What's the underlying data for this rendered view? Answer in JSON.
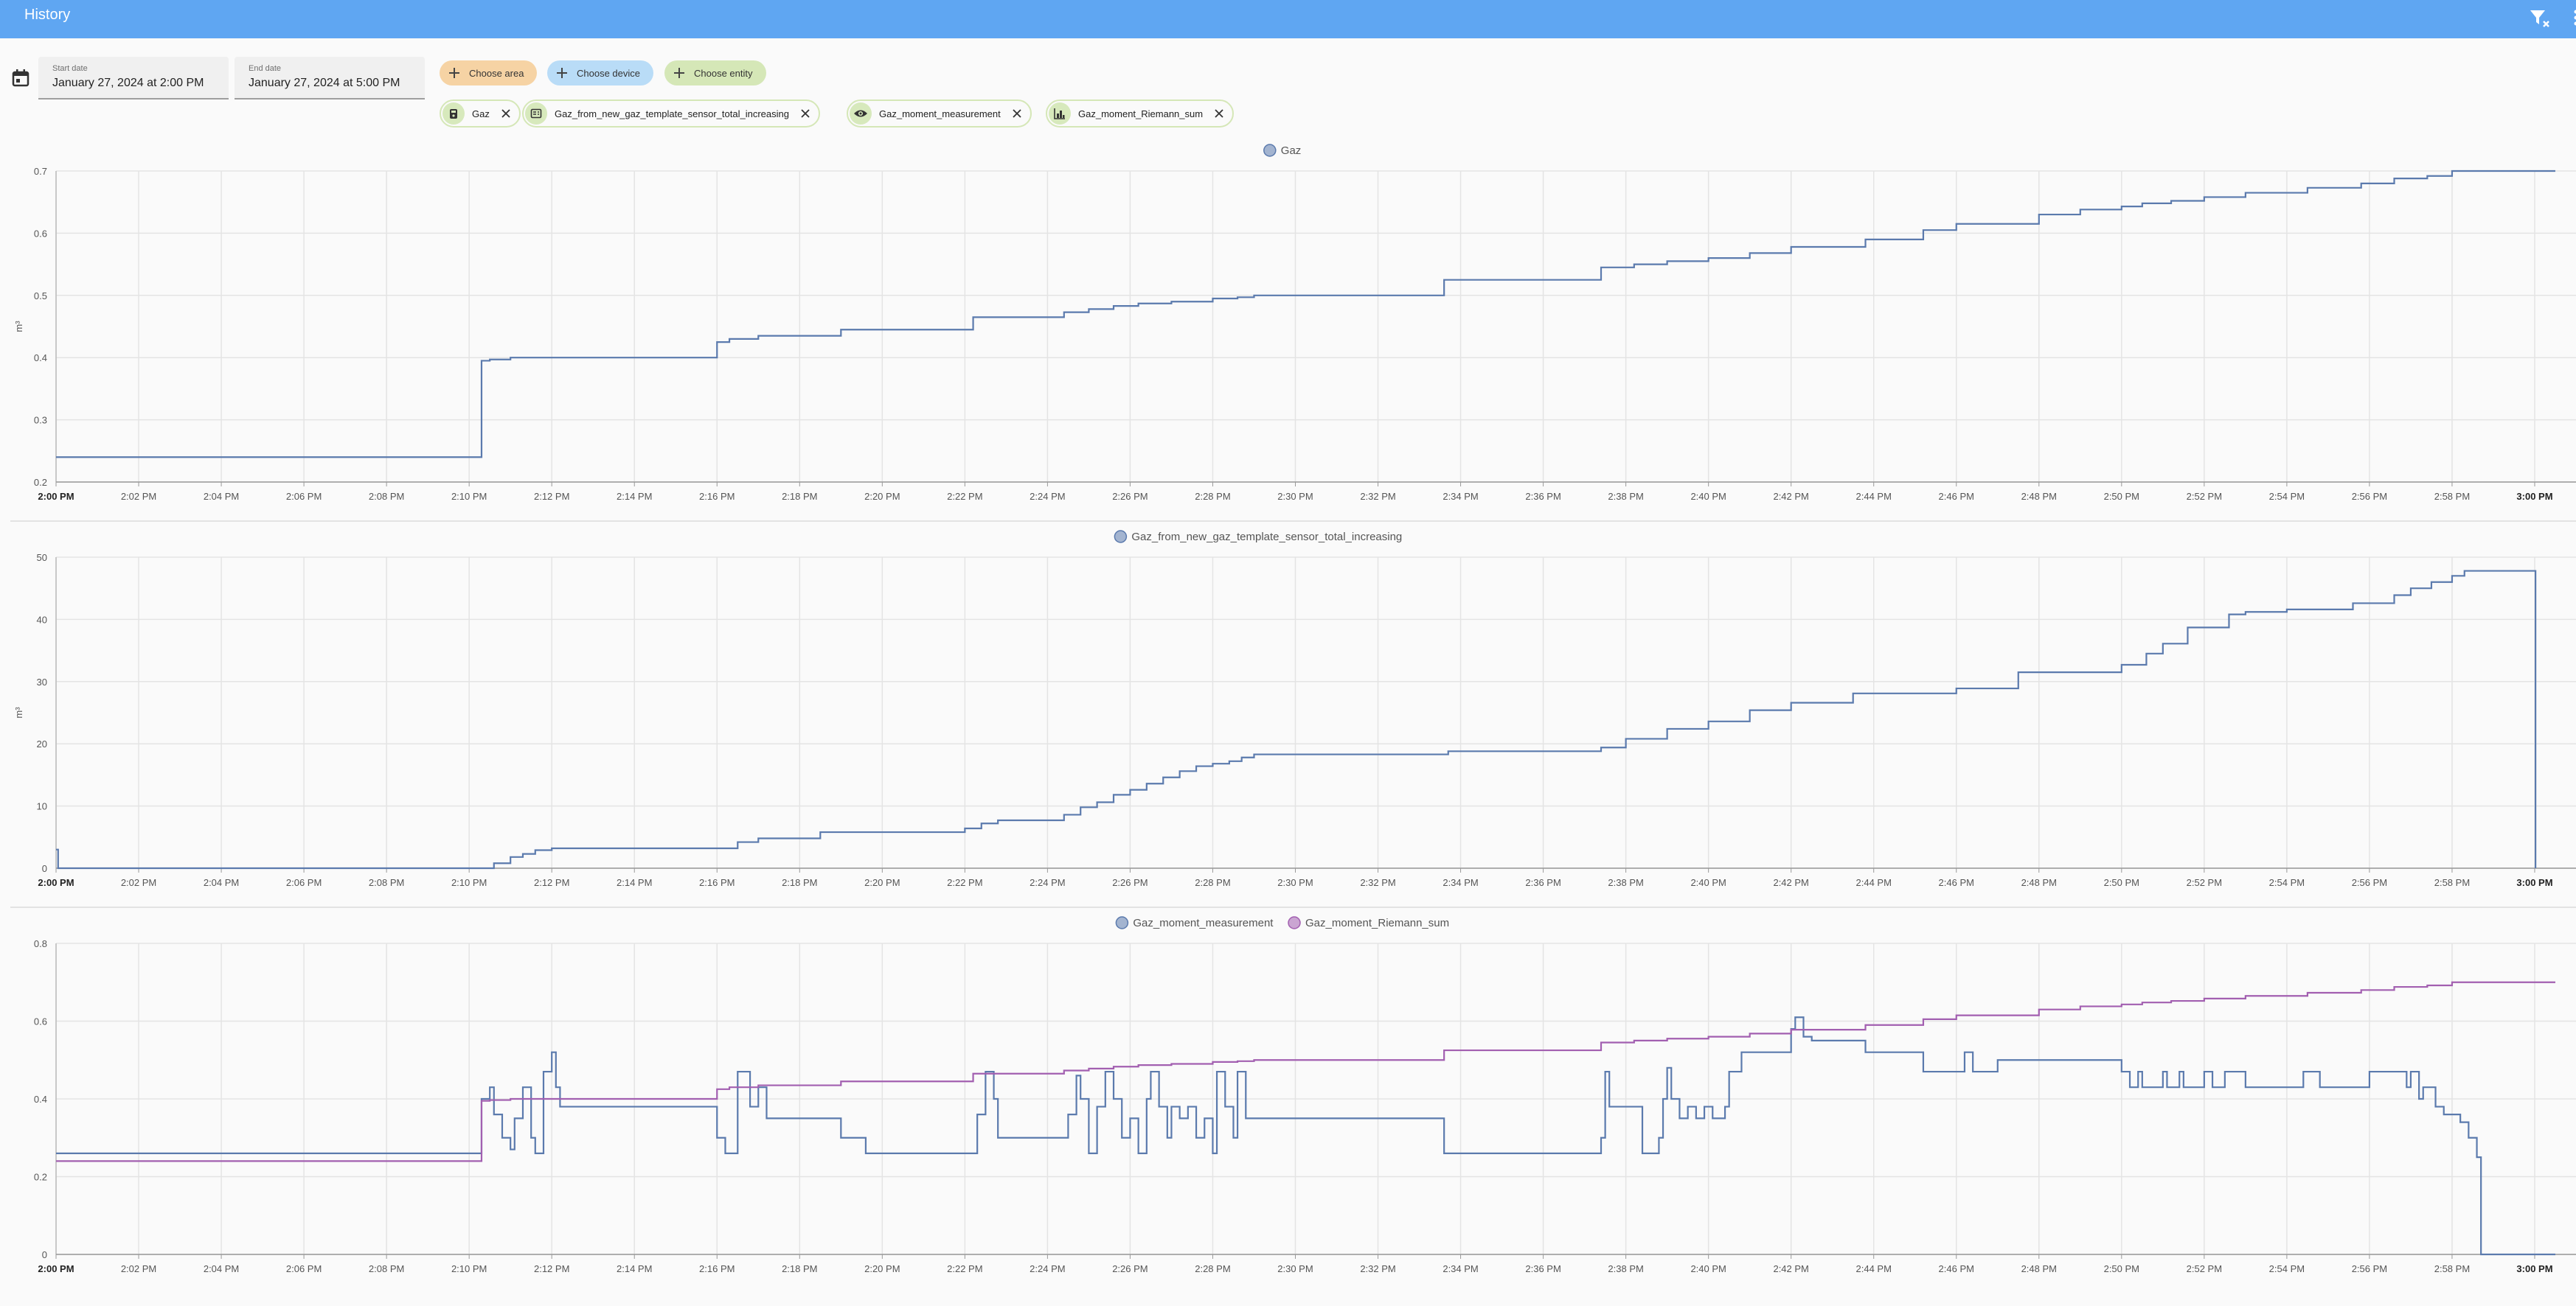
{
  "header": {
    "title": "History",
    "filter_clear_icon": "filter-remove-icon",
    "more_icon": "overflow-menu-icon"
  },
  "toolbar": {
    "calendar_icon": "calendar-icon",
    "start_date": {
      "label": "Start date",
      "value": "January 27, 2024 at 2:00 PM"
    },
    "end_date": {
      "label": "End date",
      "value": "January 27, 2024 at 5:00 PM"
    },
    "add_area": "Choose area",
    "add_device": "Choose device",
    "add_entity": "Choose entity",
    "selected_entities": [
      {
        "name": "Gaz",
        "icon": "meter-gas-icon"
      },
      {
        "name": "Gaz_from_new_gaz_template_sensor_total_increasing",
        "icon": "template-sensor-icon"
      },
      {
        "name": "Gaz_moment_measurement",
        "icon": "eye-icon"
      },
      {
        "name": "Gaz_moment_Riemann_sum",
        "icon": "chart-histogram-icon"
      }
    ]
  },
  "colors": {
    "appbar": "#5fa6f2",
    "series_blue": "#5b7aad",
    "series_purple": "#a25fb0",
    "chip_area": "#f6d3a4",
    "chip_device": "#b9dcf7",
    "chip_entity": "#d5e7b7"
  },
  "x_ticks": [
    "2:00 PM",
    "2:02 PM",
    "2:04 PM",
    "2:06 PM",
    "2:08 PM",
    "2:10 PM",
    "2:12 PM",
    "2:14 PM",
    "2:16 PM",
    "2:18 PM",
    "2:20 PM",
    "2:22 PM",
    "2:24 PM",
    "2:26 PM",
    "2:28 PM",
    "2:30 PM",
    "2:32 PM",
    "2:34 PM",
    "2:36 PM",
    "2:38 PM",
    "2:40 PM",
    "2:42 PM",
    "2:44 PM",
    "2:46 PM",
    "2:48 PM",
    "2:50 PM",
    "2:52 PM",
    "2:54 PM",
    "2:56 PM",
    "2:58 PM",
    "3:00 PM"
  ],
  "chart_data": [
    {
      "type": "line",
      "step": true,
      "legend": [
        "Gaz"
      ],
      "ylabel": "m³",
      "ylim": [
        0.2,
        0.7
      ],
      "yticks": [
        "0.2",
        "0.3",
        "0.4",
        "0.5",
        "0.6",
        "0.7"
      ],
      "x_unit": "minutes after 2:00 PM",
      "series": [
        {
          "name": "Gaz",
          "color": "#5b7aad",
          "x": [
            0,
            10.3,
            10.5,
            11,
            11.5,
            16,
            16.3,
            17,
            19,
            22.2,
            24.4,
            25,
            25.6,
            26.2,
            27,
            28,
            28.6,
            29,
            33.6,
            37.4,
            38.2,
            39,
            40,
            41,
            42,
            43.8,
            45.2,
            46,
            48,
            49,
            50,
            50.5,
            51.2,
            52,
            53,
            54.5,
            55.8,
            56.6,
            57.4,
            58,
            60.5
          ],
          "y": [
            0.24,
            0.395,
            0.397,
            0.4,
            0.4,
            0.425,
            0.43,
            0.435,
            0.445,
            0.465,
            0.473,
            0.478,
            0.483,
            0.487,
            0.49,
            0.495,
            0.497,
            0.5,
            0.525,
            0.545,
            0.55,
            0.555,
            0.56,
            0.568,
            0.578,
            0.59,
            0.605,
            0.615,
            0.63,
            0.638,
            0.643,
            0.648,
            0.652,
            0.658,
            0.665,
            0.673,
            0.68,
            0.688,
            0.692,
            0.7,
            0.7
          ]
        }
      ]
    },
    {
      "type": "line",
      "step": true,
      "legend": [
        "Gaz_from_new_gaz_template_sensor_total_increasing"
      ],
      "ylabel": "m³",
      "ylim": [
        0,
        50
      ],
      "yticks": [
        "0",
        "10",
        "20",
        "30",
        "40",
        "50"
      ],
      "x_unit": "minutes after 2:00 PM",
      "series": [
        {
          "name": "Gaz_from_new_gaz_template_sensor_total_increasing",
          "color": "#5b7aad",
          "x": [
            0,
            0.05,
            10.2,
            10.6,
            11,
            11.3,
            11.6,
            12,
            16,
            16.5,
            17,
            18.5,
            22,
            22.4,
            22.8,
            24.4,
            24.8,
            25.2,
            25.6,
            26,
            26.4,
            26.8,
            27.2,
            27.6,
            28,
            28.4,
            28.7,
            29,
            33.7,
            37.4,
            38,
            39,
            40,
            41,
            42,
            43.5,
            46,
            47.5,
            50,
            50.6,
            51,
            51.6,
            52.6,
            53,
            54,
            55.6,
            56.6,
            57,
            57.5,
            58,
            58.3,
            60,
            60.02
          ],
          "y": [
            3,
            0,
            0,
            0.8,
            1.8,
            2.3,
            2.9,
            3.2,
            3.2,
            4.2,
            4.8,
            5.8,
            6.4,
            7.2,
            7.7,
            8.6,
            9.8,
            10.6,
            11.8,
            12.6,
            13.6,
            14.6,
            15.6,
            16.4,
            16.8,
            17.2,
            17.8,
            18.3,
            18.8,
            19.4,
            20.8,
            22.4,
            23.6,
            25.4,
            26.6,
            28.1,
            28.9,
            31.5,
            32.7,
            34.5,
            36.1,
            38.7,
            40.8,
            41.2,
            41.6,
            42.6,
            43.9,
            45,
            46,
            47,
            47.8,
            47.8,
            0
          ]
        }
      ]
    },
    {
      "type": "line",
      "step": true,
      "legend": [
        "Gaz_moment_measurement",
        "Gaz_moment_Riemann_sum"
      ],
      "ylabel": "",
      "ylim": [
        0,
        0.8
      ],
      "yticks": [
        "0",
        "0.2",
        "0.4",
        "0.6",
        "0.8"
      ],
      "x_unit": "minutes after 2:00 PM",
      "series": [
        {
          "name": "Gaz_moment_measurement",
          "color": "#5b7aad",
          "x": [
            0,
            10.3,
            10.5,
            10.6,
            10.8,
            11,
            11.1,
            11.3,
            11.5,
            11.6,
            11.8,
            12,
            12.1,
            12.2,
            16,
            16.2,
            16.5,
            16.8,
            17,
            17.2,
            17.4,
            19,
            19.6,
            22.2,
            22.3,
            22.5,
            22.7,
            22.8,
            24.4,
            24.5,
            24.7,
            24.8,
            25,
            25.2,
            25.4,
            25.6,
            25.8,
            26,
            26.2,
            26.4,
            26.5,
            26.7,
            26.9,
            27,
            27.2,
            27.4,
            27.6,
            27.8,
            28,
            28.1,
            28.3,
            28.5,
            28.6,
            28.8,
            33.6,
            37.4,
            37.5,
            37.6,
            38.4,
            38.8,
            38.9,
            39,
            39.1,
            39.3,
            39.5,
            39.7,
            39.9,
            40.1,
            40.4,
            40.5,
            40.8,
            42,
            42.1,
            42.3,
            42.5,
            43.8,
            45.2,
            46.2,
            46.4,
            47,
            50,
            50.1,
            50.2,
            50.4,
            50.5,
            51,
            51.1,
            51.4,
            51.5,
            52,
            52.2,
            52.5,
            53,
            54.4,
            54.8,
            56,
            56.9,
            57,
            57.2,
            57.3,
            57.6,
            57.8,
            58.2,
            58.4,
            58.6,
            58.7,
            60.5
          ],
          "y": [
            0.26,
            0.4,
            0.43,
            0.36,
            0.3,
            0.27,
            0.35,
            0.43,
            0.3,
            0.26,
            0.47,
            0.52,
            0.43,
            0.38,
            0.3,
            0.26,
            0.47,
            0.38,
            0.43,
            0.35,
            0.35,
            0.3,
            0.26,
            0.26,
            0.36,
            0.47,
            0.4,
            0.3,
            0.3,
            0.36,
            0.46,
            0.4,
            0.26,
            0.38,
            0.47,
            0.4,
            0.3,
            0.35,
            0.26,
            0.4,
            0.47,
            0.38,
            0.3,
            0.38,
            0.35,
            0.38,
            0.3,
            0.35,
            0.26,
            0.47,
            0.38,
            0.3,
            0.47,
            0.35,
            0.26,
            0.3,
            0.47,
            0.38,
            0.26,
            0.3,
            0.4,
            0.48,
            0.4,
            0.35,
            0.38,
            0.35,
            0.38,
            0.35,
            0.38,
            0.47,
            0.52,
            0.58,
            0.61,
            0.56,
            0.55,
            0.52,
            0.47,
            0.52,
            0.47,
            0.5,
            0.47,
            0.47,
            0.43,
            0.47,
            0.43,
            0.47,
            0.43,
            0.47,
            0.43,
            0.47,
            0.43,
            0.47,
            0.43,
            0.47,
            0.43,
            0.47,
            0.43,
            0.47,
            0.4,
            0.43,
            0.38,
            0.36,
            0.34,
            0.3,
            0.25,
            0.0,
            0.0
          ]
        },
        {
          "name": "Gaz_moment_Riemann_sum",
          "color": "#a25fb0",
          "x": [
            0,
            10.3,
            10.5,
            11,
            16,
            16.3,
            17,
            19,
            22.2,
            24.4,
            25,
            25.6,
            26.2,
            27,
            28,
            28.6,
            29,
            33.6,
            37.4,
            38.2,
            39,
            40,
            41,
            42,
            43.8,
            45.2,
            46,
            48,
            49,
            50,
            50.5,
            51.2,
            52,
            53,
            54.5,
            55.8,
            56.6,
            57.4,
            58,
            60.5
          ],
          "y": [
            0.24,
            0.395,
            0.397,
            0.4,
            0.425,
            0.43,
            0.435,
            0.445,
            0.465,
            0.473,
            0.478,
            0.483,
            0.487,
            0.49,
            0.495,
            0.497,
            0.5,
            0.525,
            0.545,
            0.55,
            0.555,
            0.56,
            0.568,
            0.578,
            0.59,
            0.605,
            0.615,
            0.63,
            0.638,
            0.643,
            0.648,
            0.652,
            0.658,
            0.665,
            0.673,
            0.68,
            0.688,
            0.692,
            0.7,
            0.7
          ]
        }
      ]
    }
  ]
}
